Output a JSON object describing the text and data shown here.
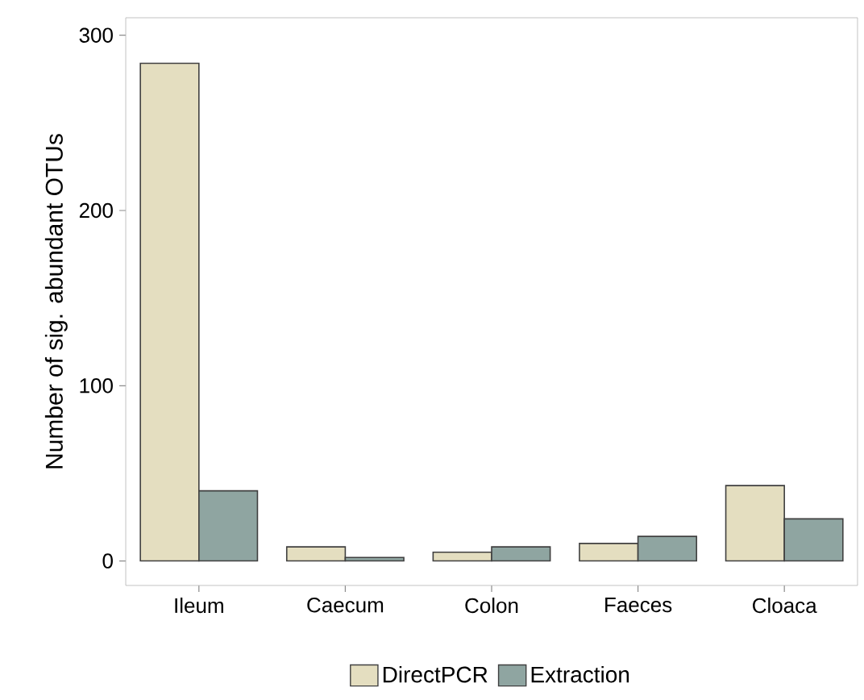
{
  "chart_data": {
    "type": "bar",
    "ylabel": "Number of sig. abundant OTUs",
    "categories": [
      "Ileum",
      "Caecum",
      "Colon",
      "Faeces",
      "Cloaca"
    ],
    "series": [
      {
        "name": "DirectPCR",
        "color": "#e4dec0",
        "values": [
          284,
          8,
          5,
          10,
          43
        ]
      },
      {
        "name": "Extraction",
        "color": "#8fa5a1",
        "values": [
          40,
          2,
          8,
          14,
          24
        ]
      }
    ],
    "ylim": [
      -14,
      310
    ],
    "yticks": [
      0,
      100,
      200,
      300
    ],
    "grid": false,
    "legend": "bottom"
  }
}
